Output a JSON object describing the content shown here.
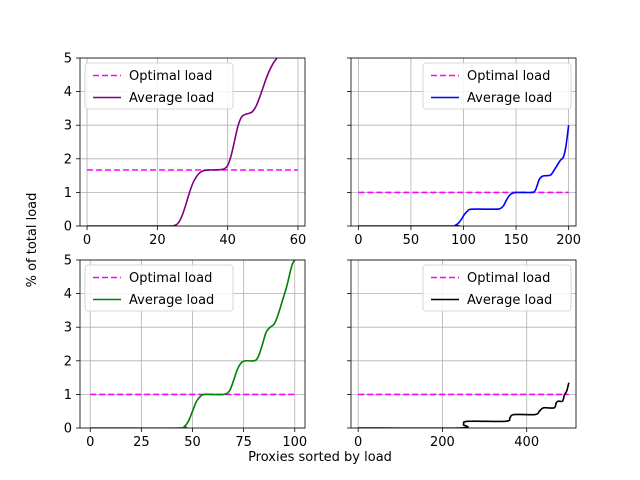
{
  "figure": {
    "ylabel": "% of total load",
    "xlabel": "Proxies sorted by load"
  },
  "chart_data": [
    {
      "type": "line",
      "xlim": [
        -2,
        62
      ],
      "ylim": [
        0,
        5
      ],
      "xticks": [
        0,
        20,
        40,
        60
      ],
      "yticks": [
        0,
        1,
        2,
        3,
        4,
        5
      ],
      "show_yticklabels": true,
      "grid": true,
      "legend_position": "top-left",
      "series": [
        {
          "name": "Optimal load",
          "style": "dashed",
          "color": "#ff00ff",
          "x": [
            0,
            60
          ],
          "y": [
            1.6667,
            1.6667
          ]
        },
        {
          "name": "Average load",
          "style": "solid",
          "color": "#800080",
          "x": [
            0,
            22,
            25,
            26,
            27,
            28,
            29,
            30,
            31,
            32,
            33,
            34,
            35,
            36,
            38,
            39,
            40,
            41,
            42,
            43,
            44,
            45,
            46,
            47,
            48,
            49,
            50,
            51,
            52,
            53,
            54,
            55
          ],
          "y": [
            0,
            0,
            0.02,
            0.1,
            0.3,
            0.6,
            0.95,
            1.25,
            1.45,
            1.58,
            1.64,
            1.66,
            1.67,
            1.67,
            1.68,
            1.7,
            1.8,
            2.1,
            2.55,
            3.0,
            3.25,
            3.32,
            3.35,
            3.4,
            3.55,
            3.8,
            4.1,
            4.4,
            4.65,
            4.85,
            5.0,
            5.2
          ]
        }
      ]
    },
    {
      "type": "line",
      "xlim": [
        -7,
        207
      ],
      "ylim": [
        0,
        5
      ],
      "xticks": [
        0,
        50,
        100,
        150,
        200
      ],
      "yticks": [
        0,
        1,
        2,
        3,
        4,
        5
      ],
      "show_yticklabels": false,
      "grid": true,
      "legend_position": "top-right",
      "series": [
        {
          "name": "Optimal load",
          "style": "dashed",
          "color": "#ff00ff",
          "x": [
            0,
            200
          ],
          "y": [
            1,
            1
          ]
        },
        {
          "name": "Average load",
          "style": "solid",
          "color": "#0000ff",
          "x": [
            0,
            88,
            92,
            95,
            98,
            101,
            104,
            108,
            130,
            135,
            138,
            141,
            144,
            148,
            152,
            165,
            168,
            170,
            172,
            175,
            180,
            183,
            186,
            189,
            192,
            195,
            197,
            198,
            199,
            200
          ],
          "y": [
            0,
            0,
            0.02,
            0.08,
            0.2,
            0.35,
            0.45,
            0.5,
            0.5,
            0.52,
            0.6,
            0.78,
            0.92,
            0.99,
            1.0,
            1.0,
            1.05,
            1.2,
            1.38,
            1.48,
            1.5,
            1.52,
            1.65,
            1.8,
            1.95,
            2.05,
            2.3,
            2.5,
            2.75,
            3.0
          ]
        }
      ]
    },
    {
      "type": "line",
      "xlim": [
        -5,
        105
      ],
      "ylim": [
        0,
        5
      ],
      "xticks": [
        0,
        25,
        50,
        75,
        100
      ],
      "yticks": [
        0,
        1,
        2,
        3,
        4,
        5
      ],
      "show_yticklabels": true,
      "grid": true,
      "legend_position": "top-left",
      "series": [
        {
          "name": "Optimal load",
          "style": "dashed",
          "color": "#ff00ff",
          "x": [
            0,
            100
          ],
          "y": [
            1,
            1
          ]
        },
        {
          "name": "Average load",
          "style": "solid",
          "color": "#008000",
          "x": [
            0,
            43,
            46,
            48,
            50,
            52,
            54,
            56,
            65,
            68,
            70,
            72,
            74,
            76,
            80,
            82,
            84,
            86,
            88,
            90,
            92,
            94,
            96,
            98,
            99,
            100
          ],
          "y": [
            0,
            0,
            0.05,
            0.2,
            0.5,
            0.8,
            0.95,
            1.0,
            1.0,
            1.1,
            1.4,
            1.75,
            1.95,
            2.0,
            2.0,
            2.1,
            2.45,
            2.85,
            3.0,
            3.1,
            3.4,
            3.8,
            4.2,
            4.7,
            4.9,
            5.0
          ]
        }
      ]
    },
    {
      "type": "line",
      "xlim": [
        -17,
        517
      ],
      "ylim": [
        0,
        5
      ],
      "xticks": [
        0,
        200,
        400
      ],
      "yticks": [
        0,
        1,
        2,
        3,
        4,
        5
      ],
      "show_yticklabels": false,
      "grid": true,
      "legend_position": "top-right",
      "series": [
        {
          "name": "Optimal load",
          "style": "dashed",
          "color": "#ff00ff",
          "x": [
            0,
            500
          ],
          "y": [
            1,
            1
          ]
        },
        {
          "name": "Average load",
          "style": "solid",
          "color": "#000000",
          "x": [
            0,
            240,
            250,
            260,
            350,
            360,
            370,
            420,
            430,
            440,
            465,
            470,
            475,
            485,
            490,
            495,
            500
          ],
          "y": [
            0,
            0,
            0.1,
            0.2,
            0.2,
            0.3,
            0.4,
            0.4,
            0.5,
            0.6,
            0.6,
            0.75,
            0.8,
            0.8,
            1.0,
            1.1,
            1.35
          ]
        }
      ]
    }
  ]
}
